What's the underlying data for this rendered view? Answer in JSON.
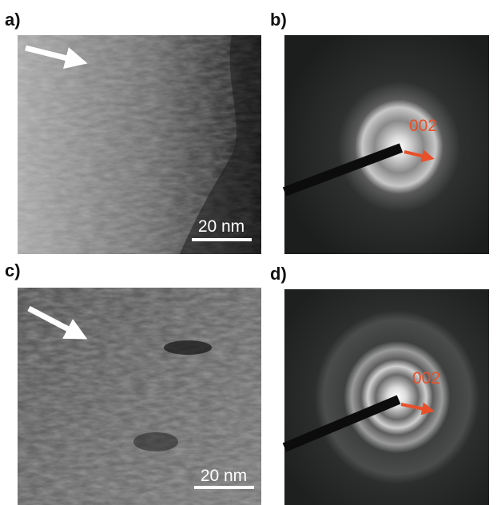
{
  "panels": [
    {
      "label": "a)",
      "scale_bar": "20 nm"
    },
    {
      "label": "b)",
      "annotation": "002"
    },
    {
      "label": "c)",
      "scale_bar": "20 nm"
    },
    {
      "label": "d)",
      "annotation": "002"
    }
  ]
}
